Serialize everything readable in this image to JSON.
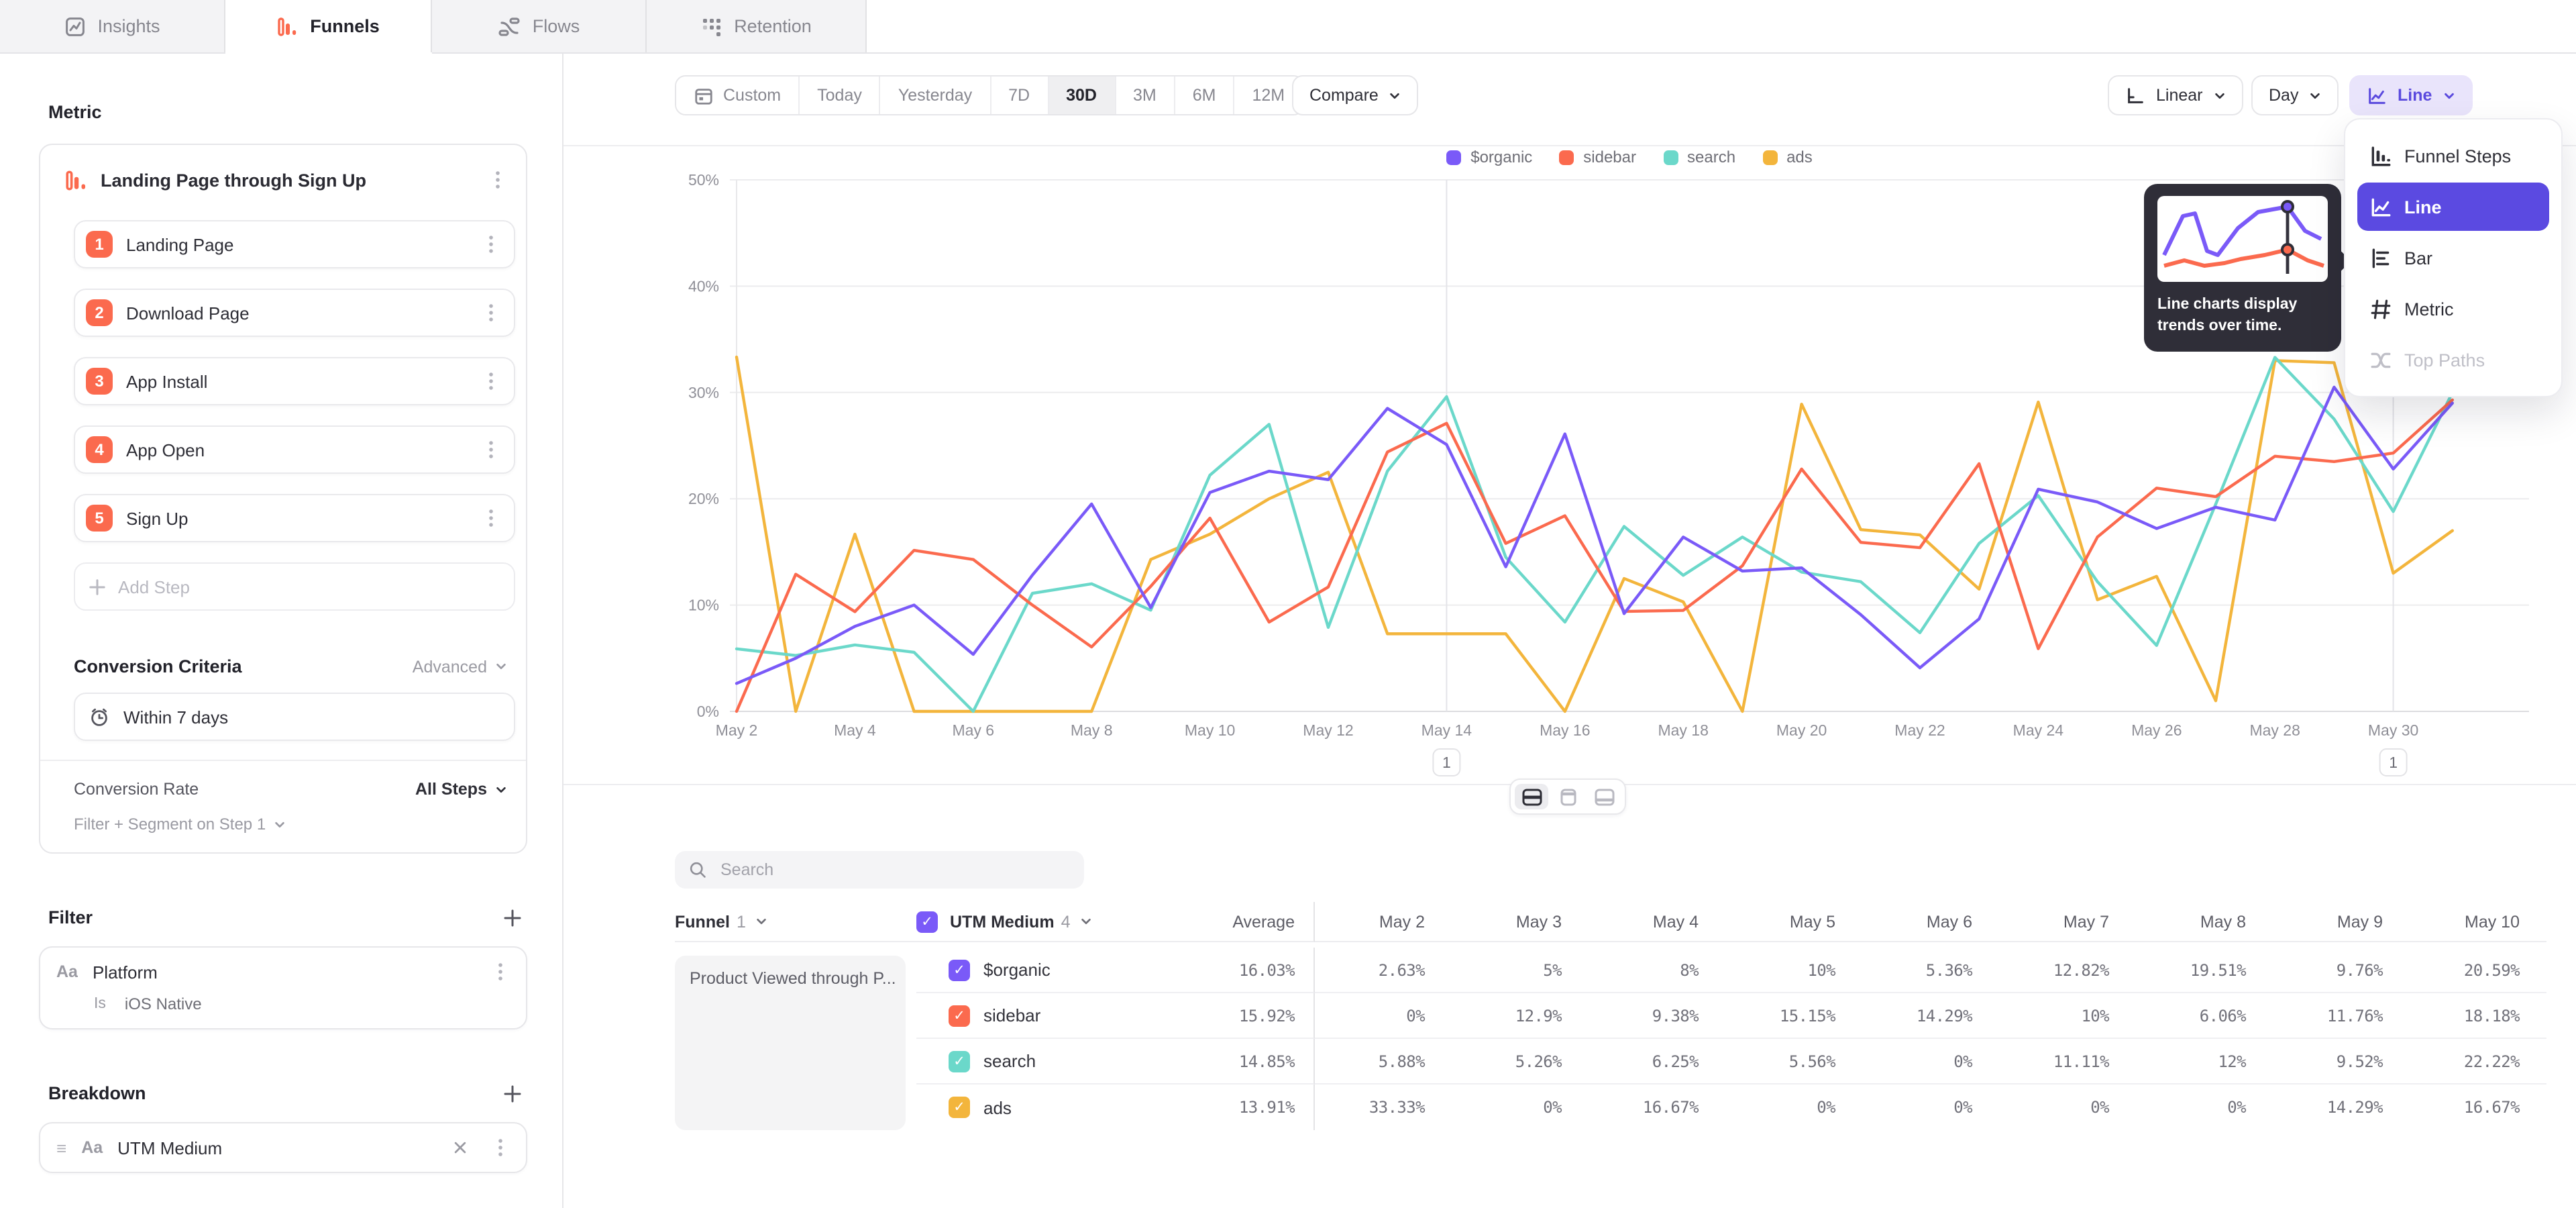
{
  "tabs": [
    {
      "label": "Insights",
      "icon": "insights-icon",
      "active": false
    },
    {
      "label": "Funnels",
      "icon": "funnels-icon",
      "active": true
    },
    {
      "label": "Flows",
      "icon": "flows-icon",
      "active": false
    },
    {
      "label": "Retention",
      "icon": "retention-icon",
      "active": false
    }
  ],
  "sidebar": {
    "metric_label": "Metric",
    "metric_title": "Landing Page through Sign Up",
    "steps": [
      {
        "num": "1",
        "label": "Landing Page"
      },
      {
        "num": "2",
        "label": "Download Page"
      },
      {
        "num": "3",
        "label": "App Install"
      },
      {
        "num": "4",
        "label": "App Open"
      },
      {
        "num": "5",
        "label": "Sign Up"
      }
    ],
    "add_step_label": "Add Step",
    "conversion_criteria": {
      "heading": "Conversion Criteria",
      "mode": "Advanced",
      "window": "Within 7 days"
    },
    "conversion_rate": {
      "label": "Conversion Rate",
      "value": "All Steps"
    },
    "filter_segment_label": "Filter + Segment on Step 1",
    "filter": {
      "heading": "Filter",
      "type_badge": "Aa",
      "property": "Platform",
      "operator": "Is",
      "value": "iOS Native"
    },
    "breakdown": {
      "heading": "Breakdown",
      "type_badge": "Aa",
      "property": "UTM Medium"
    }
  },
  "toolbar": {
    "date_ranges": [
      "Custom",
      "Today",
      "Yesterday",
      "7D",
      "30D",
      "3M",
      "6M",
      "12M"
    ],
    "active_range": "30D",
    "compare_label": "Compare",
    "scale_label": "Linear",
    "interval_label": "Day",
    "chart_type_label": "Line"
  },
  "chart_type_menu": {
    "items": [
      {
        "label": "Funnel Steps",
        "icon": "funnel-steps-icon",
        "selected": false,
        "disabled": false
      },
      {
        "label": "Line",
        "icon": "line-chart-icon",
        "selected": true,
        "disabled": false
      },
      {
        "label": "Bar",
        "icon": "bar-chart-icon",
        "selected": false,
        "disabled": false
      },
      {
        "label": "Metric",
        "icon": "metric-icon",
        "selected": false,
        "disabled": false
      },
      {
        "label": "Top Paths",
        "icon": "top-paths-icon",
        "selected": false,
        "disabled": true
      }
    ],
    "tooltip_text": "Line charts display trends over time."
  },
  "chart_data": {
    "type": "line",
    "title": "",
    "xlabel": "",
    "ylabel": "",
    "ylim": [
      0,
      50
    ],
    "grid": true,
    "legend_position": "top",
    "y_ticks": [
      "0%",
      "10%",
      "20%",
      "30%",
      "40%",
      "50%"
    ],
    "x": [
      "May 2",
      "May 3",
      "May 4",
      "May 5",
      "May 6",
      "May 7",
      "May 8",
      "May 9",
      "May 10",
      "May 11",
      "May 12",
      "May 13",
      "May 14",
      "May 15",
      "May 16",
      "May 17",
      "May 18",
      "May 19",
      "May 20",
      "May 21",
      "May 22",
      "May 23",
      "May 24",
      "May 25",
      "May 26",
      "May 27",
      "May 28",
      "May 29",
      "May 30",
      "May 31"
    ],
    "x_tick_every": 2,
    "annotations": [
      {
        "x_index": 12,
        "x_label": "May 14",
        "label": "1"
      },
      {
        "x_index": 28,
        "x_label": "May 30",
        "label": "1"
      }
    ],
    "series": [
      {
        "name": "$organic",
        "color": "#7A5AF8",
        "values": [
          2.63,
          5,
          8,
          10,
          5.36,
          12.82,
          19.51,
          9.76,
          20.59,
          22.6,
          21.8,
          28.5,
          25.1,
          13.6,
          26.1,
          9.2,
          16.4,
          13.2,
          13.5,
          9.1,
          4.1,
          8.7,
          20.9,
          19.7,
          17.2,
          19.2,
          18,
          30.5,
          22.8,
          29
        ]
      },
      {
        "name": "sidebar",
        "color": "#FB6A4E",
        "values": [
          0,
          12.9,
          9.38,
          15.15,
          14.29,
          10,
          6.06,
          11.76,
          18.18,
          8.4,
          11.7,
          24.4,
          27.1,
          15.8,
          18.4,
          9.4,
          9.5,
          13.7,
          22.8,
          15.9,
          15.4,
          23.3,
          5.9,
          16.4,
          21,
          20.2,
          24,
          23.5,
          24.3,
          29.3
        ]
      },
      {
        "name": "search",
        "color": "#6BD8CA",
        "values": [
          5.88,
          5.26,
          6.25,
          5.56,
          0,
          11.11,
          12,
          9.52,
          22.22,
          27,
          7.9,
          22.6,
          29.6,
          14.5,
          8.4,
          17.4,
          12.8,
          16.4,
          13.1,
          12.2,
          7.4,
          15.8,
          20.3,
          12.2,
          6.2,
          19.5,
          33.3,
          27.5,
          18.8,
          30
        ]
      },
      {
        "name": "ads",
        "color": "#F3B53C",
        "values": [
          33.33,
          0,
          16.67,
          0,
          0,
          0,
          0,
          14.29,
          16.67,
          20,
          22.5,
          7.3,
          7.3,
          7.3,
          0,
          12.5,
          10.3,
          0,
          28.9,
          17.1,
          16.6,
          11.5,
          29.1,
          10.5,
          12.7,
          1,
          33,
          32.8,
          13,
          17
        ]
      }
    ]
  },
  "table": {
    "search_placeholder": "Search",
    "funnel_col_label": "Funnel",
    "funnel_col_count": "1",
    "breakdown_col_label": "UTM Medium",
    "breakdown_col_count": "4",
    "row_group_label": "Product Viewed through P...",
    "columns": [
      "Average",
      "May 2",
      "May 3",
      "May 4",
      "May 5",
      "May 6",
      "May 7",
      "May 8",
      "May 9",
      "May 10"
    ],
    "rows": [
      {
        "label": "$organic",
        "color": "#7A5AF8",
        "average": "16.03%",
        "values": [
          "2.63%",
          "5%",
          "8%",
          "10%",
          "5.36%",
          "12.82%",
          "19.51%",
          "9.76%",
          "20.59%"
        ]
      },
      {
        "label": "sidebar",
        "color": "#FB6A4E",
        "average": "15.92%",
        "values": [
          "0%",
          "12.9%",
          "9.38%",
          "15.15%",
          "14.29%",
          "10%",
          "6.06%",
          "11.76%",
          "18.18%"
        ]
      },
      {
        "label": "search",
        "color": "#6BD8CA",
        "average": "14.85%",
        "values": [
          "5.88%",
          "5.26%",
          "6.25%",
          "5.56%",
          "0%",
          "11.11%",
          "12%",
          "9.52%",
          "22.22%"
        ]
      },
      {
        "label": "ads",
        "color": "#F3B53C",
        "average": "13.91%",
        "values": [
          "33.33%",
          "0%",
          "16.67%",
          "0%",
          "0%",
          "0%",
          "0%",
          "14.29%",
          "16.67%"
        ]
      }
    ]
  },
  "colors": {
    "accent": "#5B4AE1",
    "accent_light": "#E9E4FB",
    "coral": "#FB6A4E"
  }
}
